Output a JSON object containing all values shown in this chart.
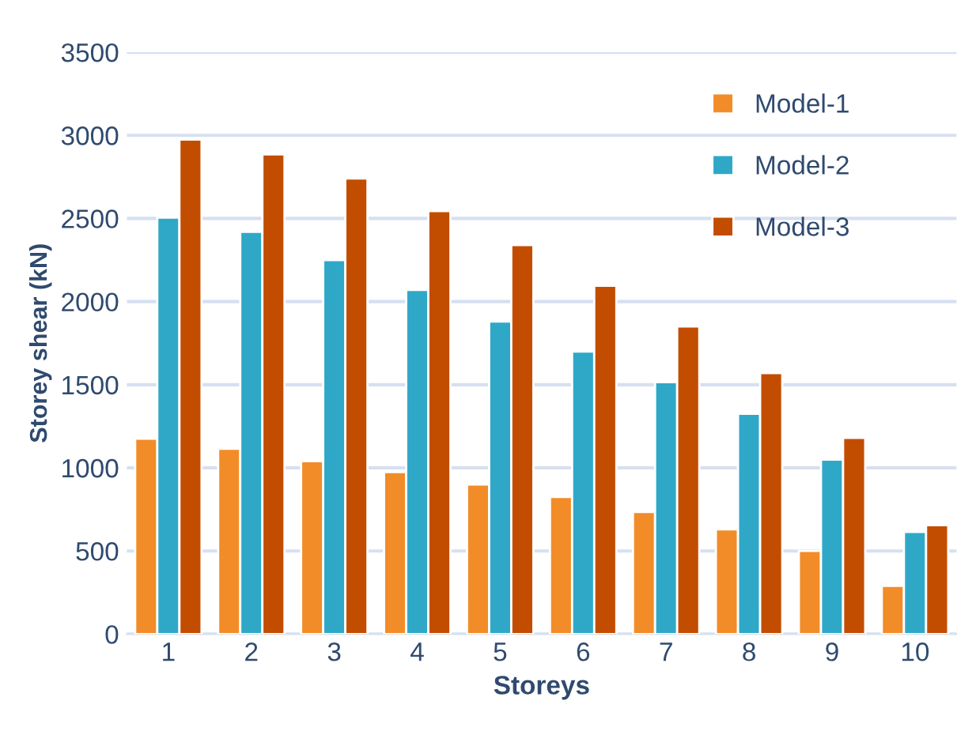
{
  "chart_data": {
    "type": "bar",
    "xlabel": "Storeys",
    "ylabel": "Storey shear (kN)",
    "categories": [
      "1",
      "2",
      "3",
      "4",
      "5",
      "6",
      "7",
      "8",
      "9",
      "10"
    ],
    "series": [
      {
        "name": "Model-1",
        "color": "#f28c28",
        "values": [
          1175,
          1115,
          1040,
          975,
          900,
          825,
          735,
          630,
          500,
          290
        ]
      },
      {
        "name": "Model-2",
        "color": "#2fa8c8",
        "values": [
          2505,
          2420,
          2250,
          2070,
          1880,
          1700,
          1515,
          1325,
          1050,
          615
        ]
      },
      {
        "name": "Model-3",
        "color": "#c24d00",
        "values": [
          2975,
          2885,
          2740,
          2545,
          2340,
          2095,
          1850,
          1570,
          1180,
          655
        ]
      }
    ],
    "ylim": [
      0,
      3500
    ],
    "yticks": [
      0,
      500,
      1000,
      1500,
      2000,
      2500,
      3000,
      3500
    ],
    "grid": "y",
    "legend": "top right"
  }
}
